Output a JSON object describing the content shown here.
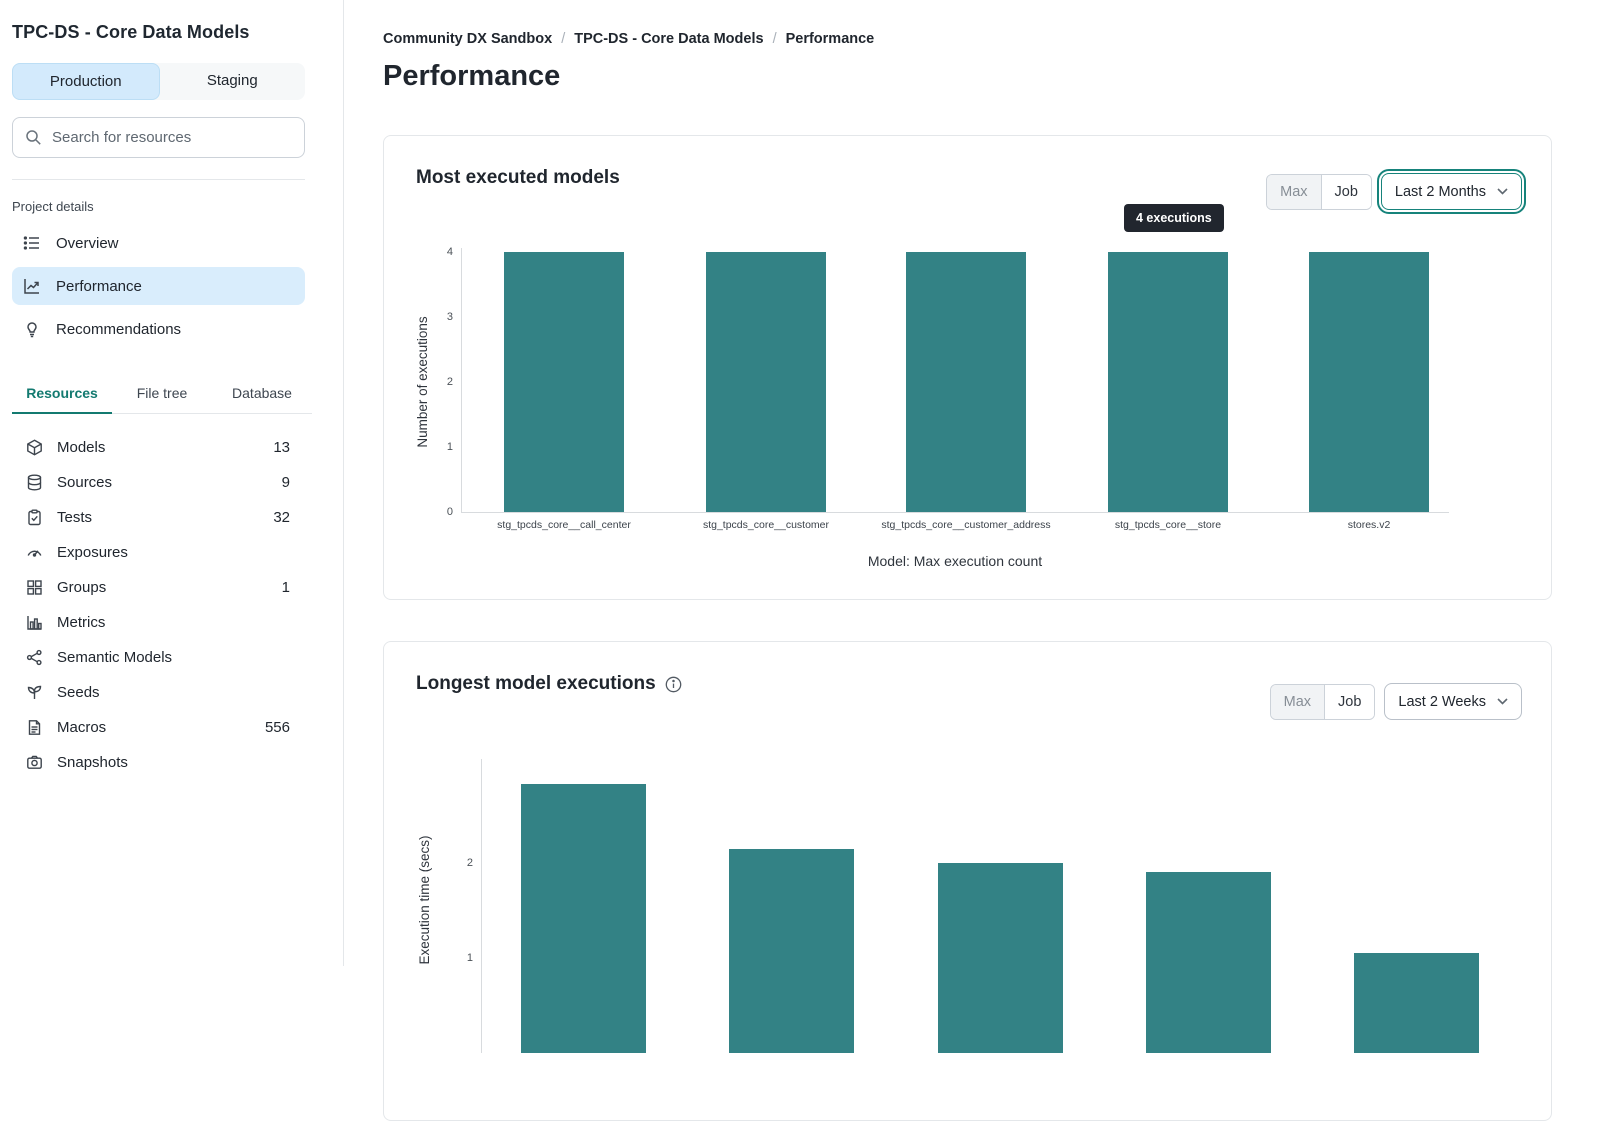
{
  "sidebar": {
    "project_title": "TPC-DS - Core Data Models",
    "env_tabs": [
      {
        "label": "Production",
        "active": true
      },
      {
        "label": "Staging",
        "active": false
      }
    ],
    "search_placeholder": "Search for resources",
    "section_label": "Project details",
    "nav": [
      {
        "label": "Overview",
        "icon": "list-icon",
        "active": false
      },
      {
        "label": "Performance",
        "icon": "trend-icon",
        "active": true
      },
      {
        "label": "Recommendations",
        "icon": "lightbulb-icon",
        "active": false
      }
    ],
    "tabs": [
      {
        "label": "Resources",
        "active": true
      },
      {
        "label": "File tree",
        "active": false
      },
      {
        "label": "Database",
        "active": false
      }
    ],
    "resources": [
      {
        "label": "Models",
        "icon": "cube-icon",
        "count": "13"
      },
      {
        "label": "Sources",
        "icon": "database-icon",
        "count": "9"
      },
      {
        "label": "Tests",
        "icon": "clipboard-check-icon",
        "count": "32"
      },
      {
        "label": "Exposures",
        "icon": "gauge-icon",
        "count": ""
      },
      {
        "label": "Groups",
        "icon": "grid-icon",
        "count": "1"
      },
      {
        "label": "Metrics",
        "icon": "bar-chart-icon",
        "count": ""
      },
      {
        "label": "Semantic Models",
        "icon": "network-icon",
        "count": ""
      },
      {
        "label": "Seeds",
        "icon": "seedling-icon",
        "count": ""
      },
      {
        "label": "Macros",
        "icon": "file-icon",
        "count": "556"
      },
      {
        "label": "Snapshots",
        "icon": "camera-icon",
        "count": ""
      }
    ]
  },
  "breadcrumb": [
    "Community DX Sandbox",
    "TPC-DS - Core Data Models",
    "Performance"
  ],
  "page_title": "Performance",
  "cards": [
    {
      "title": "Most executed models",
      "toggle": [
        "Max",
        "Job"
      ],
      "range": "Last 2 Months",
      "tooltip": "4 executions",
      "has_info": false
    },
    {
      "title": "Longest model executions",
      "toggle": [
        "Max",
        "Job"
      ],
      "range": "Last 2 Weeks",
      "has_info": true
    }
  ],
  "colors": {
    "bar": "#338285",
    "accent_teal": "#137a70",
    "selected_blue": "#d9edfc",
    "tooltip_bg": "#21262e"
  },
  "chart_data": [
    {
      "type": "bar",
      "title": "Most executed models",
      "categories": [
        "stg_tpcds_core__call_center",
        "stg_tpcds_core__customer",
        "stg_tpcds_core__customer_address",
        "stg_tpcds_core__store",
        "stores.v2"
      ],
      "values": [
        4,
        4,
        4,
        4,
        4
      ],
      "xlabel": "Model: Max execution count",
      "ylabel": "Number of executions",
      "ylim": [
        0,
        4
      ],
      "yticks": [
        0,
        1,
        2,
        3,
        4
      ],
      "grid": false,
      "legend": false,
      "tooltip": {
        "text": "4 executions",
        "bar_index": 3
      }
    },
    {
      "type": "bar",
      "title": "Longest model executions",
      "categories": [],
      "values": [
        2.83,
        2.15,
        2.0,
        1.91,
        1.05
      ],
      "xlabel": "",
      "ylabel": "Execution time (secs)",
      "ylim": [
        0,
        3
      ],
      "yticks": [
        1,
        2
      ],
      "grid": false,
      "legend": false,
      "note": "chart bottom cropped by viewport"
    }
  ]
}
